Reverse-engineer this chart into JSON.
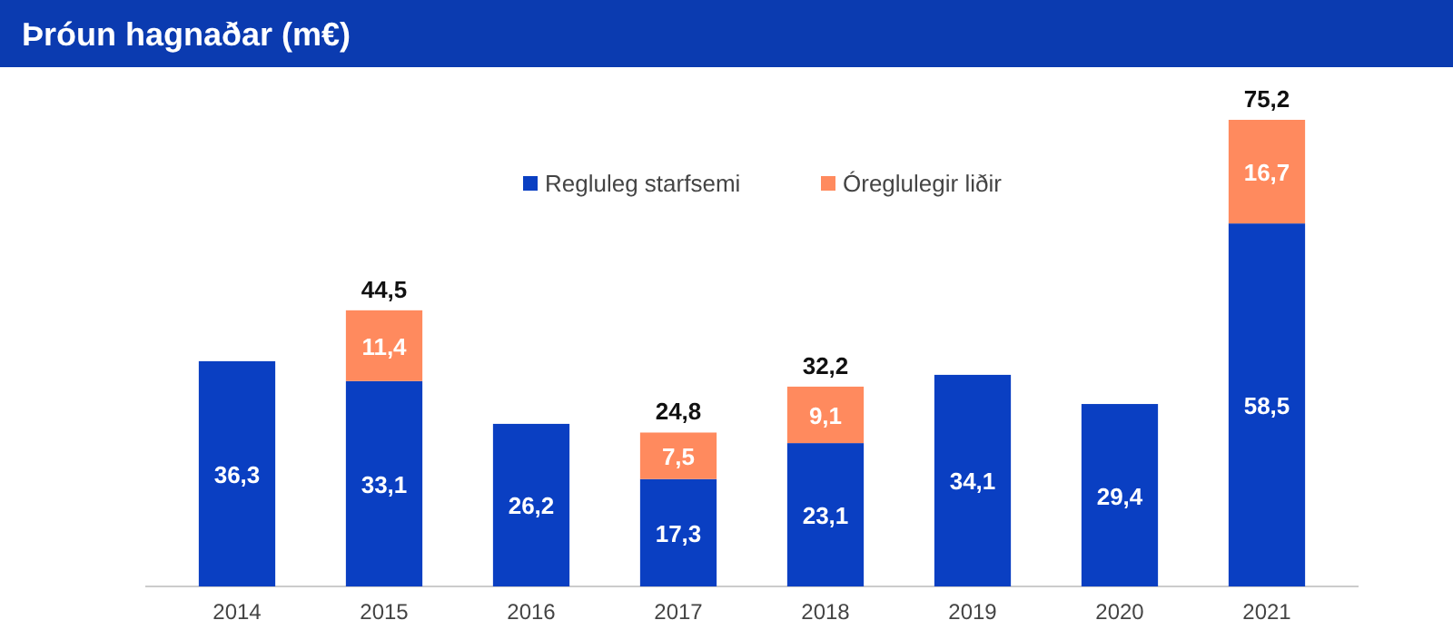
{
  "chart_data": {
    "type": "bar",
    "title": "Þróun hagnaðar (m€)",
    "stacked": true,
    "legend": "top",
    "categories": [
      "2014",
      "2015",
      "2016",
      "2017",
      "2018",
      "2019",
      "2020",
      "2021"
    ],
    "series": [
      {
        "name": "Regluleg starfsemi",
        "color": "#0a3fc2",
        "values": [
          36.3,
          33.1,
          26.2,
          17.3,
          23.1,
          34.1,
          29.4,
          58.5
        ],
        "value_labels": [
          "36,3",
          "33,1",
          "26,2",
          "17,3",
          "23,1",
          "34,1",
          "29,4",
          "58,5"
        ]
      },
      {
        "name": "Óreglulegir liðir",
        "color": "#ff8a5e",
        "values": [
          null,
          11.4,
          null,
          7.5,
          9.1,
          null,
          null,
          16.7
        ],
        "value_labels": [
          null,
          "11,4",
          null,
          "7,5",
          "9,1",
          null,
          null,
          "16,7"
        ]
      }
    ],
    "totals": [
      null,
      "44,5",
      null,
      "24,8",
      "32,2",
      null,
      null,
      "75,2"
    ]
  }
}
